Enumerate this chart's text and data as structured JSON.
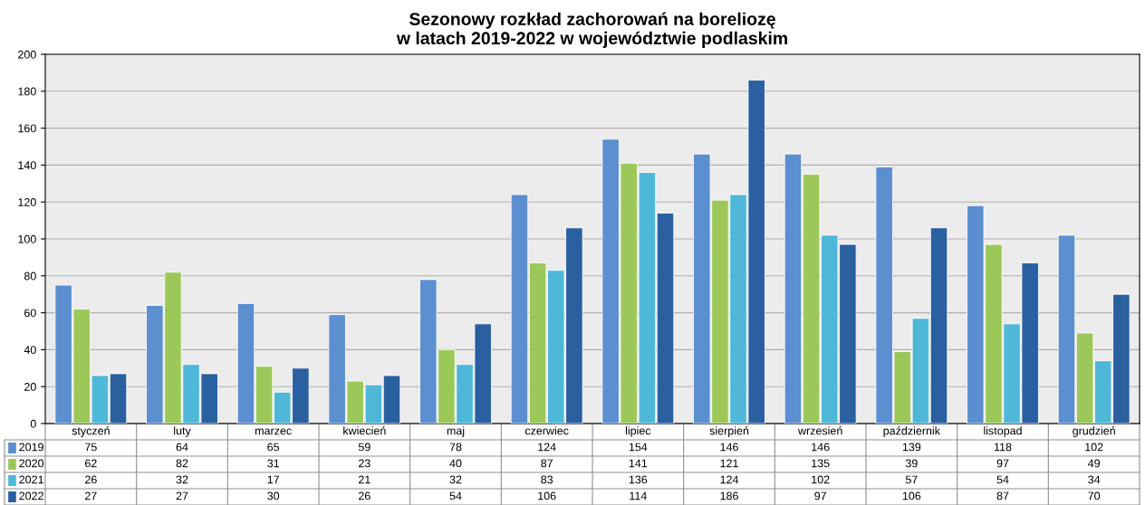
{
  "chart_data": {
    "type": "bar",
    "title": "Sezonowy rozkład zachorowań na boreliozę\nw latach 2019-2022 w województwie podlaskim",
    "categories": [
      "styczeń",
      "luty",
      "marzec",
      "kwiecień",
      "maj",
      "czerwiec",
      "lipiec",
      "sierpień",
      "wrzesień",
      "październik",
      "listopad",
      "grudzień"
    ],
    "series": [
      {
        "name": "2019",
        "color": "#5b8fd0",
        "values": [
          75,
          64,
          65,
          59,
          78,
          124,
          154,
          146,
          146,
          139,
          118,
          102
        ]
      },
      {
        "name": "2020",
        "color": "#9cc85a",
        "values": [
          62,
          82,
          31,
          23,
          40,
          87,
          141,
          121,
          135,
          39,
          97,
          49
        ]
      },
      {
        "name": "2021",
        "color": "#4fb8d8",
        "values": [
          26,
          32,
          17,
          21,
          32,
          83,
          136,
          124,
          102,
          57,
          54,
          34
        ]
      },
      {
        "name": "2022",
        "color": "#2a5fa0",
        "values": [
          27,
          27,
          30,
          26,
          54,
          106,
          114,
          186,
          97,
          106,
          87,
          70
        ]
      }
    ],
    "ylim": [
      0,
      200
    ],
    "yticks": [
      0,
      20,
      40,
      60,
      80,
      100,
      120,
      140,
      160,
      180,
      200
    ],
    "grid": "y",
    "data_labels": true,
    "legend": "bottom left"
  }
}
